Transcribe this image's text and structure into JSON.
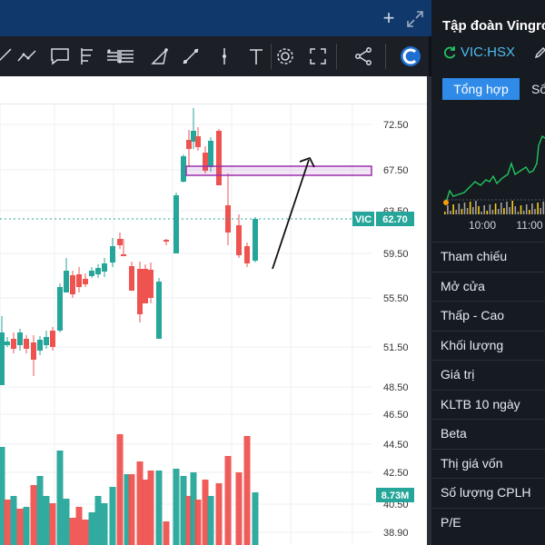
{
  "window": {
    "plus_label": "+"
  },
  "toolbar": {
    "tools": [
      "line",
      "trend",
      "note",
      "fib",
      "channel",
      "brush",
      "pitchfork",
      "pin",
      "text",
      "settings",
      "fullscreen",
      "share",
      "logo"
    ]
  },
  "chart": {
    "y_ticks": [
      "72.50",
      "67.50",
      "63.50",
      "59.50",
      "55.50",
      "51.50",
      "48.50",
      "46.50",
      "44.50",
      "42.50",
      "40.50",
      "38.90"
    ],
    "price_badge": {
      "symbol": "VIC",
      "value": "62.70"
    },
    "volume_badge": "8.73M",
    "colors": {
      "up": "#26a69a",
      "down": "#ef5350",
      "zone": "#9b2fae"
    }
  },
  "panel": {
    "company_name": "Tập đoàn Vingroup",
    "ticker": "VIC:HSX",
    "tabs": [
      "Tổng hợp",
      "Sổ lệnh"
    ],
    "mini_chart": {
      "times": [
        "10:00",
        "11:00"
      ],
      "line_color": "#22c55e"
    },
    "rows": [
      "Tham chiếu",
      "Mở cửa",
      "Thấp - Cao",
      "Khối lượng",
      "Giá trị",
      "KLTB 10 ngày",
      "Beta",
      "Thị giá vốn",
      "Số lượng CPLH",
      "P/E"
    ]
  }
}
